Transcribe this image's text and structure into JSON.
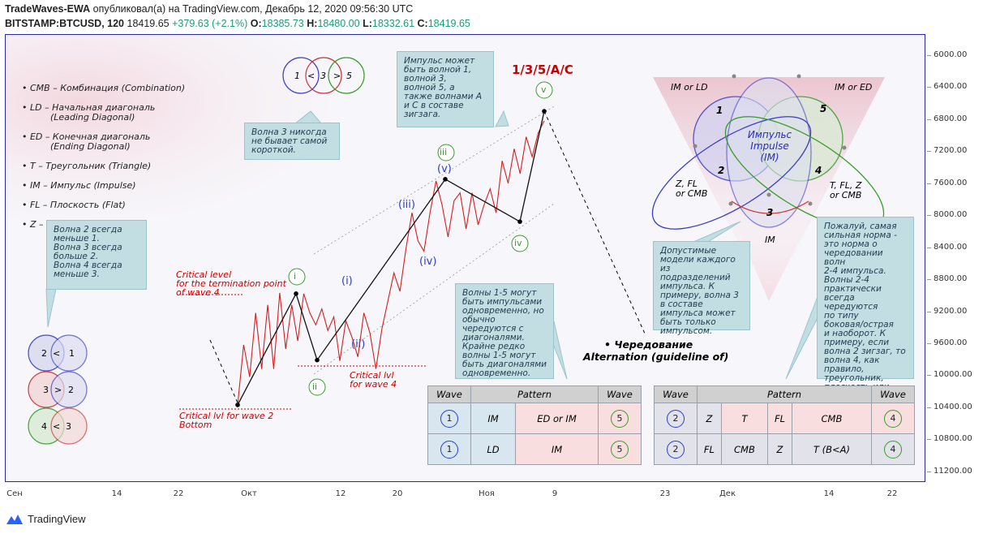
{
  "header": {
    "author": "TradeWaves-EWA",
    "published": "опубликовал(а) на TradingView.com, Декабрь 12, 2020 09:56:30 UTC",
    "symbol": "BITSTAMP:BTCUSD, 120",
    "last": "18419.65",
    "change": "+379.63 (+2.1%)",
    "o_label": "O:",
    "o_value": "18385.73",
    "h_label": "H:",
    "h_value": "18480.00",
    "l_label": "L:",
    "l_value": "18332.61",
    "c_label": "C:",
    "c_value": "18419.65"
  },
  "legend": [
    "• CMB – Комбинация (Combination)",
    "• LD – Начальная диагональ\n          (Leading Diagonal)",
    "• ED – Конечная диагональ\n          (Ending Diagonal)",
    "• T – Треугольник (Triangle)",
    "• IM – Импульс (Impulse)",
    "• FL – Плоскость (Flat)",
    "• Z – Зигзаг (Zigzag)"
  ],
  "notes": {
    "wave3": "Волна 3 никогда\nне бывает самой\nкороткой.",
    "impulse": "Импульс может\nбыть волной 1,\nволной 3,\nволной 5, а\nтакже волнами A\nи C в составе\nзигзага.",
    "wave234": "Волна 2 всегда\nменьше 1.\nВолна 3 всегда\nбольше 2.\nВолна 4 всегда\nменьше 3.",
    "diagonals": "Волны 1-5 могут\nбыть импульсами\nодновременно, но\nобычно\nчередуются с\nдиагоналями.\nКрайне редко\nволны 1-5 могут\nбыть диагоналями\nодновременно.",
    "models": "Допустимые\nмодели каждого из\nподразделений\nимпульса. К\nпримеру, волна 3\nв составе\nимпульса может\nбыть только\nимпульсом.",
    "strongest": "Пожалуй, самая\nсильная норма -\nэто норма о\nчередовании волн\n2-4 импульса.\nВолны 2-4\nпрактически\nвсегда чередуются\nпо типу\nбоковая/острая\nи наоборот. К\nпримеру, если\nволна 2 зигзаг, то\nволна 4, как\nправило,\nтреугольник,\nплоскость или\nкомбинация."
  },
  "venn_small": {
    "a": "1",
    "op1": "<",
    "b": "3",
    "op2": ">",
    "c": "5"
  },
  "venn_pairs": [
    {
      "left": "2",
      "op": "<",
      "right": "1"
    },
    {
      "left": "3",
      "op": ">",
      "right": "2"
    },
    {
      "left": "4",
      "op": "<",
      "right": "3"
    }
  ],
  "big_venn": {
    "im_ld": "IM or LD",
    "im_ed": "IM or ED",
    "n1": "1",
    "n2": "2",
    "n3": "3",
    "n4": "4",
    "n5": "5",
    "center1": "Импульс",
    "center2": "Impulse",
    "center3": "(IM)",
    "z_fl": "Z, FL\nor CMB",
    "t_fl": "T, FL, Z\nor CMB",
    "im_bottom": "IM"
  },
  "labels": {
    "title_135": "1/3/5/A/C",
    "crit_level": "Critical level\nfor the termination point\nof wave 4",
    "crit_w2": "Critical lvl for wave 2\nBottom",
    "crit_w4": "Critical lvl\nfor wave 4",
    "alt1": "• Чередование",
    "alt2": "Alternation (guideline of)",
    "w_i": "i",
    "w_ii": "ii",
    "w_iii": "iii",
    "w_iv": "iv",
    "w_v": "v",
    "s_i": "(i)",
    "s_ii": "(ii)",
    "s_iii": "(iii)",
    "s_iv": "(iv)",
    "s_v": "(v)"
  },
  "table_left": {
    "headers": [
      "Wave",
      "Pattern",
      "Wave"
    ],
    "rows": [
      {
        "w1": "1",
        "p1": "IM",
        "p2": "ED or IM",
        "w2": "5"
      },
      {
        "w1": "1",
        "p1": "LD",
        "p2": "IM",
        "w2": "5"
      }
    ]
  },
  "table_right": {
    "headers": [
      "Wave",
      "Pattern",
      "Wave"
    ],
    "rows": [
      {
        "w1": "2",
        "p": [
          "Z",
          "T",
          "FL",
          "CMB"
        ],
        "w2": "4"
      },
      {
        "w1": "2",
        "p": [
          "FL",
          "CMB",
          "Z",
          "T (B<A)"
        ],
        "w2": "4"
      }
    ]
  },
  "chart_data": {
    "type": "line",
    "title": "",
    "xlabel": "",
    "ylabel": "",
    "ylim": [
      11200,
      5800
    ],
    "y_ticks": [
      "6000.00",
      "6400.00",
      "6800.00",
      "7200.00",
      "7600.00",
      "8000.00",
      "8400.00",
      "8800.00",
      "9200.00",
      "9600.00",
      "10000.00",
      "10400.00",
      "10800.00",
      "11200.00"
    ],
    "x_ticks": [
      "Сен",
      "14",
      "22",
      "Окт",
      "12",
      "20",
      "Ноя",
      "9",
      "23",
      "Дек",
      "14",
      "22"
    ],
    "series": [
      {
        "values": [
          10350,
          8960,
          9790,
          7530,
          8060,
          6680
        ]
      },
      {
        "values": [
          10350,
          9600,
          10000,
          9200,
          9900,
          9100,
          9900,
          8950,
          9650,
          9100,
          9550,
          8960,
          9200,
          9350,
          9150,
          9420,
          9250,
          9800,
          9300,
          9500,
          9750,
          9200,
          9450,
          9900,
          9400,
          9050,
          8700,
          8930,
          8400,
          7950,
          8300,
          8430,
          7950,
          7550,
          7850,
          8250,
          7800,
          7700,
          8150,
          7700,
          8100,
          7850,
          7650,
          7950,
          7300,
          7580,
          7150,
          7460,
          7000,
          7250,
          6950,
          6800
        ]
      }
    ]
  }
}
